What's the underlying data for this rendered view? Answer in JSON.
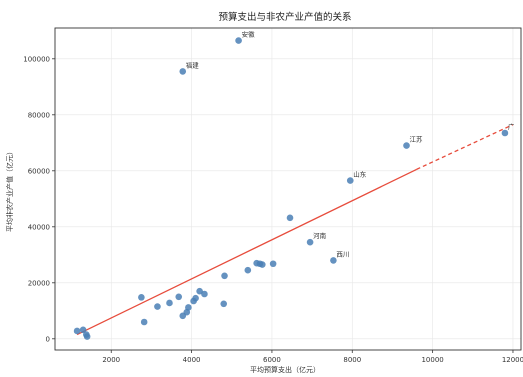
{
  "chart_data": {
    "type": "scatter",
    "title": "预算支出与非农产业产值的关系",
    "xlabel": "平均预算支出（亿元）",
    "ylabel": "平均非农产业产值（亿元）",
    "xlim": [
      600,
      12200
    ],
    "ylim": [
      -4000,
      111000
    ],
    "xticks": [
      2000,
      4000,
      6000,
      8000,
      10000,
      12000
    ],
    "yticks": [
      0,
      20000,
      40000,
      60000,
      80000,
      100000
    ],
    "grid": true,
    "point_color": "#4a7fb5",
    "fit_color": "#e74c3c",
    "points": [
      {
        "x": 1150,
        "y": 2800
      },
      {
        "x": 1300,
        "y": 3200
      },
      {
        "x": 1380,
        "y": 1500
      },
      {
        "x": 1400,
        "y": 800
      },
      {
        "x": 2750,
        "y": 14800
      },
      {
        "x": 2820,
        "y": 6000
      },
      {
        "x": 3150,
        "y": 11500
      },
      {
        "x": 3450,
        "y": 12800
      },
      {
        "x": 3680,
        "y": 15000
      },
      {
        "x": 3780,
        "y": 8200
      },
      {
        "x": 3880,
        "y": 9500
      },
      {
        "x": 3920,
        "y": 11200
      },
      {
        "x": 4050,
        "y": 13500
      },
      {
        "x": 4100,
        "y": 14500
      },
      {
        "x": 4200,
        "y": 17000
      },
      {
        "x": 4320,
        "y": 16000
      },
      {
        "x": 4800,
        "y": 12500
      },
      {
        "x": 4820,
        "y": 22500
      },
      {
        "x": 5400,
        "y": 24500
      },
      {
        "x": 5620,
        "y": 27000
      },
      {
        "x": 5700,
        "y": 26800
      },
      {
        "x": 5760,
        "y": 26500
      },
      {
        "x": 6030,
        "y": 26800
      },
      {
        "x": 6450,
        "y": 43200
      },
      {
        "x": 6950,
        "y": 34500,
        "label": "河南"
      },
      {
        "x": 7530,
        "y": 28000,
        "label": "西川"
      },
      {
        "x": 7950,
        "y": 56500,
        "label": "山东"
      },
      {
        "x": 9350,
        "y": 69000,
        "label": "江苏"
      },
      {
        "x": 11800,
        "y": 73500,
        "label": "广"
      },
      {
        "x": 3780,
        "y": 95500,
        "label": "福建"
      },
      {
        "x": 5170,
        "y": 106500,
        "label": "安徽"
      }
    ],
    "fit_line": {
      "solid": [
        [
          1150,
          1500
        ],
        [
          9600,
          60500
        ]
      ],
      "dashed": [
        [
          9600,
          60500
        ],
        [
          12000,
          76500
        ]
      ]
    }
  }
}
